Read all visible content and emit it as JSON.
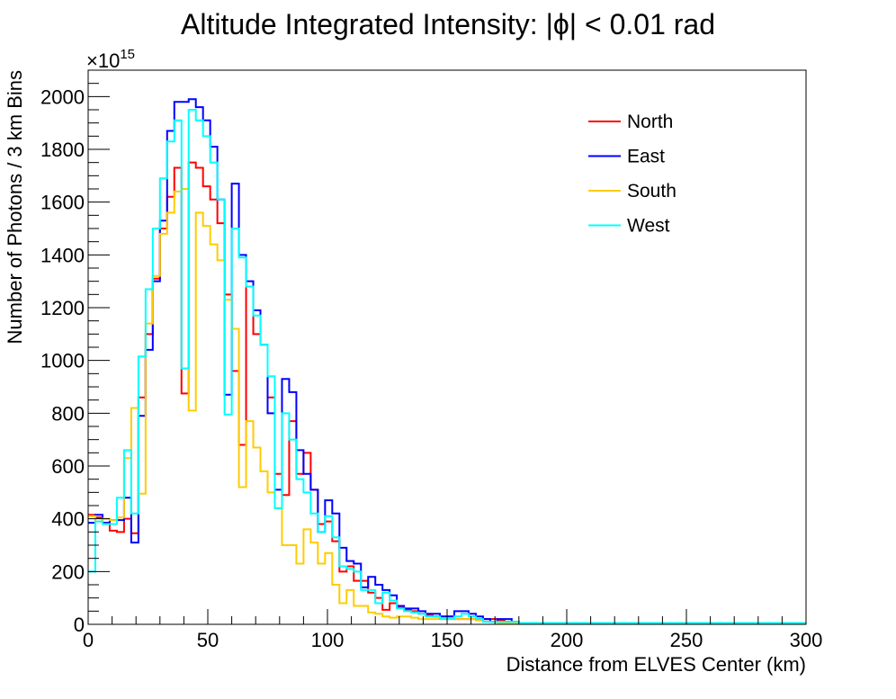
{
  "chart_data": {
    "type": "line",
    "title": "Altitude Integrated Intensity: |ϕ| < 0.01 rad",
    "xlabel": "Distance from ELVES Center (km)",
    "ylabel": "Number of Photons / 3 km Bins",
    "y_exponent_label": "×10",
    "y_exponent_power": "15",
    "xlim": [
      0,
      300
    ],
    "ylim": [
      0,
      2100
    ],
    "x_ticks": [
      0,
      50,
      100,
      150,
      200,
      250,
      300
    ],
    "x_tick_labels": [
      "0",
      "50",
      "100",
      "150",
      "200",
      "250",
      "300"
    ],
    "y_ticks": [
      0,
      200,
      400,
      600,
      800,
      1000,
      1200,
      1400,
      1600,
      1800,
      2000
    ],
    "y_tick_labels": [
      "0",
      "200",
      "400",
      "600",
      "800",
      "1000",
      "1200",
      "1400",
      "1600",
      "1800",
      "2000"
    ],
    "grid": false,
    "legend_position": "top-right",
    "bin_width": 3,
    "bin_edges_start": 0,
    "series": [
      {
        "name": "North",
        "color": "#ff0000",
        "values": [
          415,
          405,
          385,
          355,
          350,
          400,
          345,
          860,
          1100,
          1310,
          1500,
          1620,
          1730,
          875,
          1750,
          1730,
          1660,
          1610,
          1520,
          1250,
          960,
          680,
          1280,
          1100,
          1060,
          860,
          570,
          490,
          770,
          570,
          650,
          510,
          380,
          390,
          315,
          200,
          220,
          165,
          165,
          120,
          100,
          55,
          80,
          65,
          55,
          50,
          40,
          35,
          30,
          30,
          30,
          20,
          20,
          20,
          20,
          20,
          20,
          15,
          10,
          5,
          5,
          5,
          5,
          5,
          5,
          5,
          5,
          5,
          5,
          5,
          5,
          5,
          5,
          5,
          5,
          5,
          5,
          5,
          5,
          5,
          5,
          5,
          5,
          5,
          5,
          5,
          5,
          5,
          5,
          5,
          5,
          5,
          5,
          5,
          5,
          5,
          5,
          5,
          5,
          5
        ]
      },
      {
        "name": "East",
        "color": "#0000ff",
        "values": [
          385,
          415,
          385,
          395,
          395,
          480,
          310,
          790,
          1040,
          1300,
          1530,
          1870,
          1980,
          1980,
          1990,
          1960,
          1910,
          1810,
          1610,
          870,
          1670,
          1400,
          1300,
          1190,
          1060,
          800,
          510,
          930,
          880,
          660,
          570,
          510,
          350,
          470,
          420,
          290,
          240,
          230,
          140,
          180,
          150,
          130,
          110,
          70,
          60,
          60,
          50,
          40,
          40,
          30,
          30,
          50,
          50,
          40,
          30,
          20,
          10,
          20,
          20,
          10,
          5,
          5,
          5,
          5,
          5,
          5,
          5,
          5,
          5,
          5,
          5,
          5,
          5,
          5,
          5,
          5,
          5,
          5,
          5,
          5,
          5,
          5,
          5,
          5,
          5,
          5,
          5,
          5,
          5,
          5,
          5,
          5,
          5,
          5,
          5,
          5,
          5,
          5,
          5,
          5
        ]
      },
      {
        "name": "South",
        "color": "#ffcc00",
        "values": [
          410,
          390,
          400,
          395,
          405,
          630,
          820,
          495,
          1140,
          1320,
          1480,
          1560,
          1640,
          1650,
          810,
          1560,
          1510,
          1440,
          1380,
          1230,
          1120,
          520,
          770,
          670,
          580,
          500,
          440,
          300,
          300,
          230,
          360,
          310,
          230,
          270,
          150,
          80,
          130,
          70,
          70,
          45,
          40,
          30,
          25,
          30,
          30,
          25,
          20,
          20,
          20,
          20,
          20,
          20,
          20,
          20,
          15,
          10,
          10,
          5,
          5,
          5,
          5,
          5,
          5,
          5,
          5,
          5,
          5,
          5,
          5,
          5,
          5,
          5,
          5,
          5,
          5,
          5,
          5,
          5,
          5,
          5,
          5,
          5,
          5,
          5,
          5,
          5,
          5,
          5,
          5,
          5,
          5,
          5,
          5,
          5,
          5,
          5,
          5,
          5,
          5,
          5
        ]
      },
      {
        "name": "West",
        "color": "#00ffff",
        "values": [
          200,
          390,
          380,
          380,
          480,
          660,
          420,
          1015,
          1270,
          1500,
          1690,
          1830,
          1910,
          970,
          1950,
          1910,
          1850,
          1750,
          1610,
          795,
          1500,
          1390,
          1280,
          1170,
          1060,
          940,
          440,
          800,
          700,
          550,
          500,
          420,
          350,
          410,
          330,
          220,
          210,
          200,
          130,
          130,
          80,
          120,
          90,
          60,
          50,
          45,
          40,
          30,
          30,
          20,
          20,
          30,
          40,
          30,
          20,
          10,
          10,
          10,
          10,
          10,
          5,
          5,
          5,
          5,
          5,
          5,
          5,
          5,
          5,
          5,
          5,
          5,
          5,
          5,
          5,
          5,
          5,
          5,
          5,
          5,
          5,
          5,
          5,
          5,
          5,
          5,
          5,
          5,
          5,
          5,
          5,
          5,
          5,
          5,
          5,
          5,
          5,
          5,
          5,
          5
        ]
      }
    ]
  }
}
